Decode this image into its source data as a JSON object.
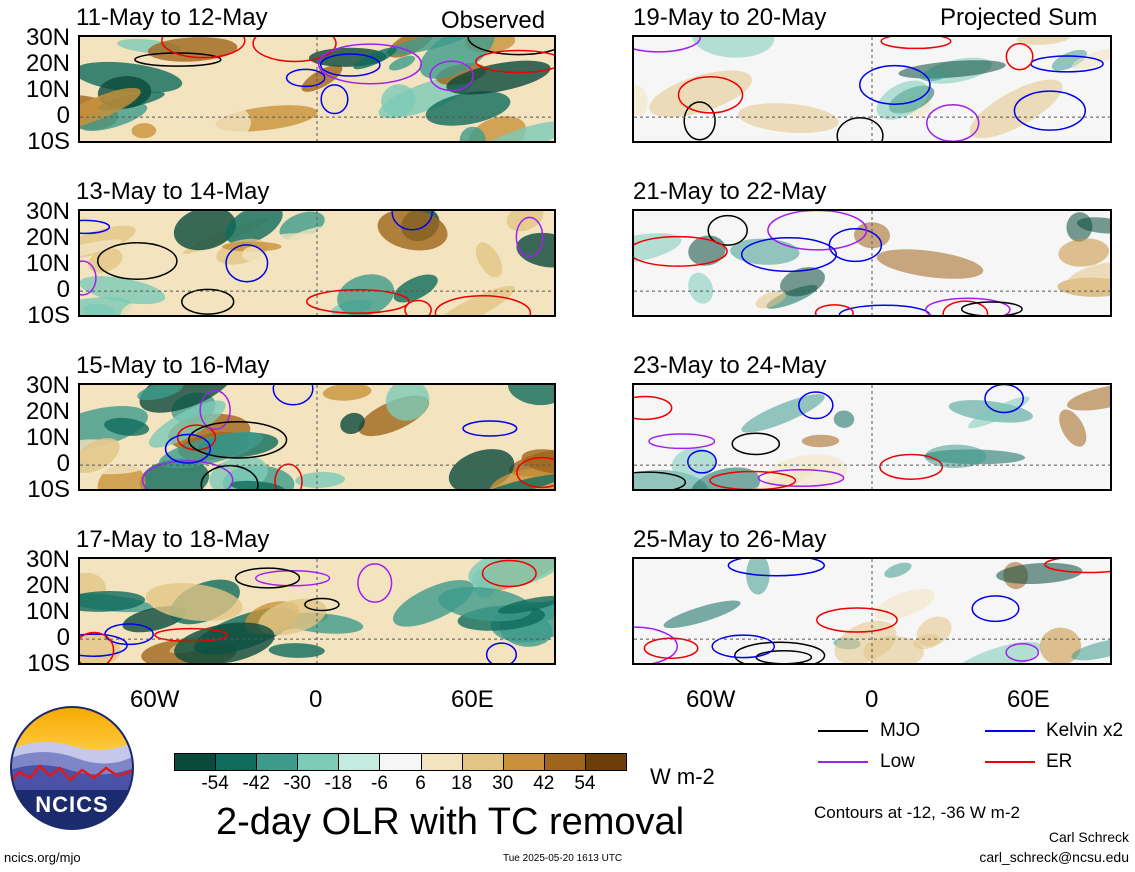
{
  "panels": [
    {
      "title": "11-May to 12-May",
      "tag": "Observed"
    },
    {
      "title": "19-May to 20-May",
      "tag": "Projected Sum"
    },
    {
      "title": "13-May to 14-May",
      "tag": ""
    },
    {
      "title": "21-May to 22-May",
      "tag": ""
    },
    {
      "title": "15-May to 16-May",
      "tag": ""
    },
    {
      "title": "23-May to 24-May",
      "tag": ""
    },
    {
      "title": "17-May to 18-May",
      "tag": ""
    },
    {
      "title": "25-May to 26-May",
      "tag": ""
    }
  ],
  "lat_labels": [
    "30N",
    "20N",
    "10N",
    "0",
    "10S"
  ],
  "lon_labels": [
    "60W",
    "0",
    "60E"
  ],
  "colorbar": {
    "colors": [
      "#0a4a3c",
      "#0f6b5c",
      "#3d9b8c",
      "#7ccab8",
      "#c4ebe0",
      "#f6f6f6",
      "#f3e3bf",
      "#e2c586",
      "#c9923a",
      "#a0651c",
      "#6b3e0a"
    ],
    "labels": [
      "-54",
      "-42",
      "-30",
      "-18",
      "-6",
      "6",
      "18",
      "30",
      "42",
      "54"
    ],
    "units": "W m-2"
  },
  "legend": {
    "items": [
      {
        "label": "MJO",
        "color": "#000000"
      },
      {
        "label": "Kelvin x2",
        "color": "#0000ee"
      },
      {
        "label": "Low",
        "color": "#a020f0"
      },
      {
        "label": "ER",
        "color": "#ee0000"
      }
    ],
    "contours_note": "Contours at -12, -36 W m-2"
  },
  "main_title": "2-day OLR with TC removal",
  "logo_text": "NCICS",
  "footer": {
    "left": "ncics.org/mjo",
    "center": "Tue 2025-05-20 1613 UTC",
    "author": "Carl Schreck",
    "email": "carl_schreck@ncsu.edu"
  }
}
